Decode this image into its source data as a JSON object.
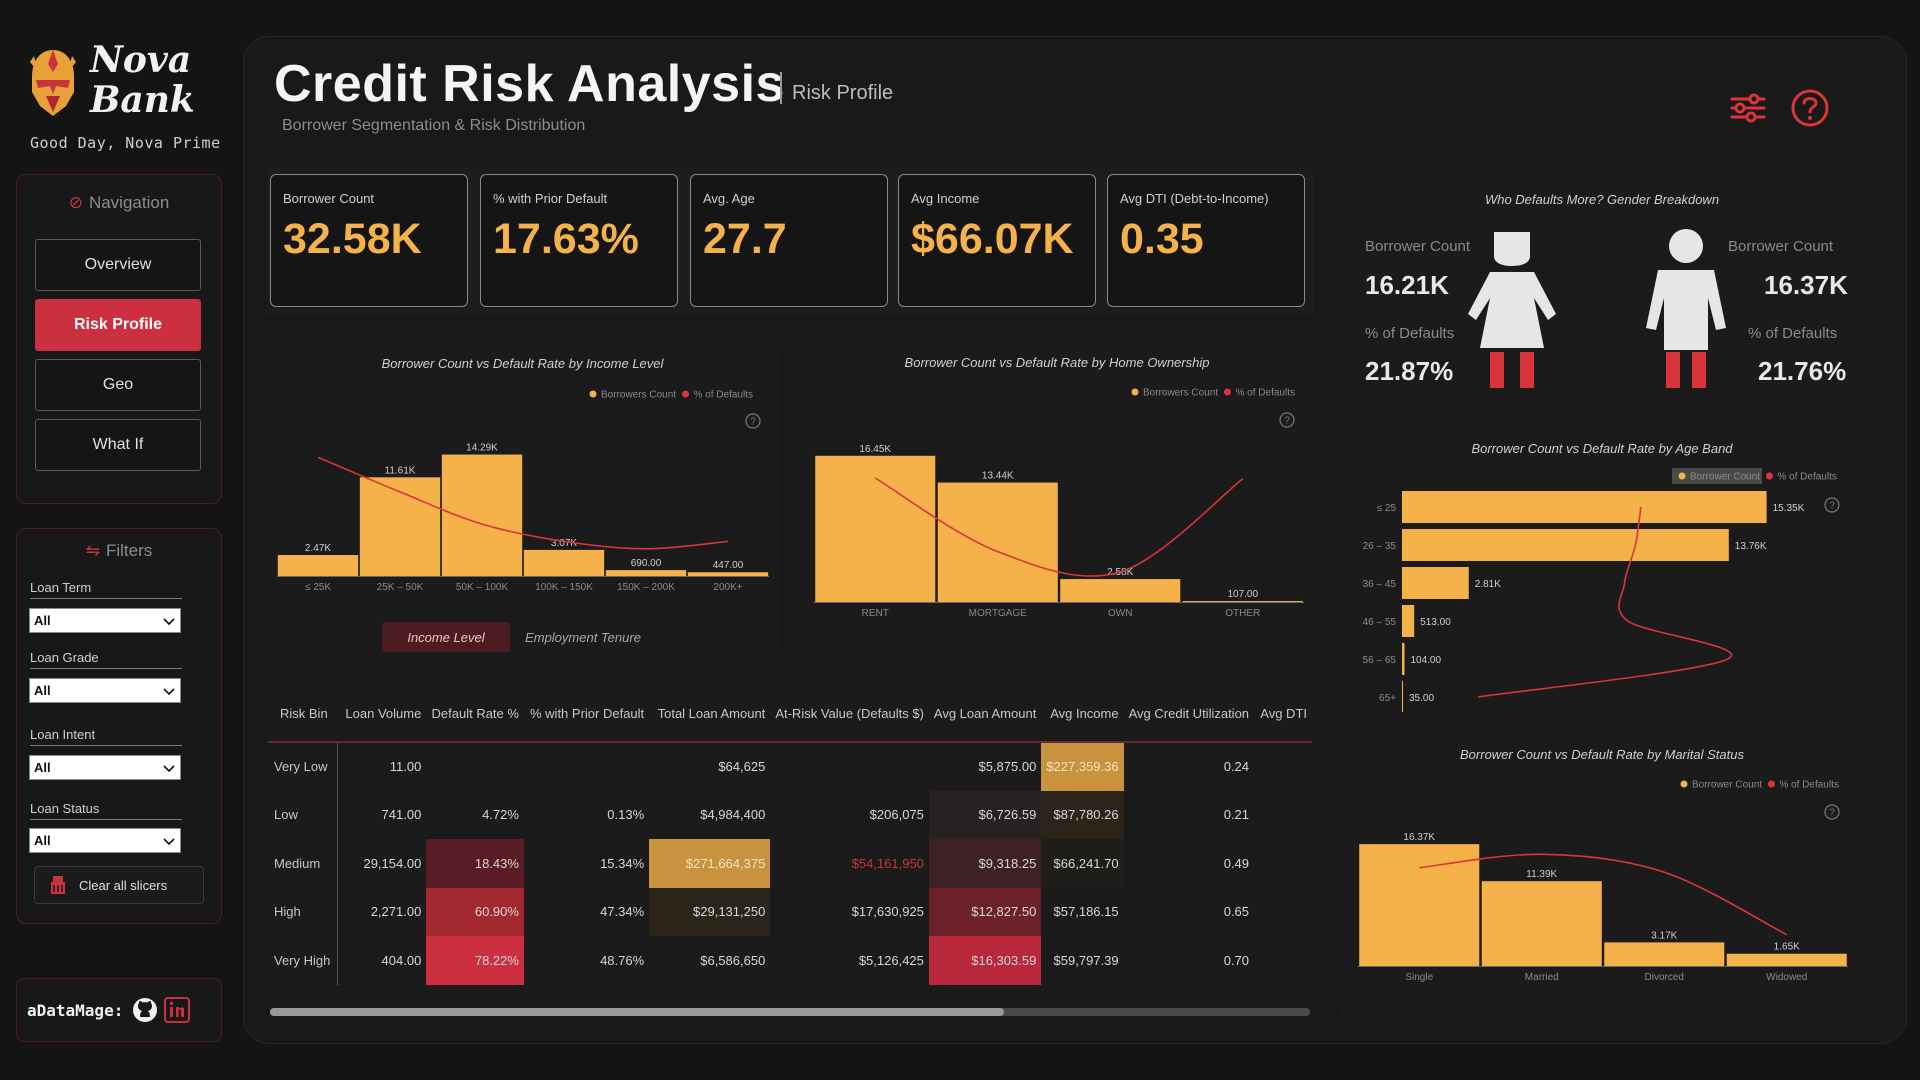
{
  "brand": {
    "name_line1": "Nova",
    "name_line2": "Bank",
    "greeting": "Good Day, Nova Prime"
  },
  "navigation": {
    "title": "Navigation",
    "items": [
      {
        "label": "Overview",
        "active": false
      },
      {
        "label": "Risk Profile",
        "active": true
      },
      {
        "label": "Geo",
        "active": false
      },
      {
        "label": "What If",
        "active": false
      }
    ]
  },
  "filters": {
    "title": "Filters",
    "items": [
      {
        "label": "Loan Term",
        "value": "All"
      },
      {
        "label": "Loan Grade",
        "value": "All"
      },
      {
        "label": "Loan Intent",
        "value": "All"
      },
      {
        "label": "Loan Status",
        "value": "All"
      }
    ],
    "clear_label": "Clear all slicers"
  },
  "footer": {
    "handle": "aDataMage:"
  },
  "header": {
    "title": "Credit Risk Analysis",
    "page": "Risk Profile",
    "subtitle": "Borrower Segmentation & Risk Distribution"
  },
  "kpis": [
    {
      "label": "Borrower Count",
      "value": "32.58K"
    },
    {
      "label": "% with Prior Default",
      "value": "17.63%"
    },
    {
      "label": "Avg. Age",
      "value": "27.7"
    },
    {
      "label": "Avg Income",
      "value": "$66.07K"
    },
    {
      "label": "Avg DTI (Debt-to-Income)",
      "value": "0.35"
    }
  ],
  "colors": {
    "bar": "#f5b14a",
    "line": "#d9353a",
    "accent": "#cc3040"
  },
  "legend": {
    "bar": "Borrowers Count",
    "line": "% of Defaults",
    "bar_alt": "Borrower Count"
  },
  "income_tabs": {
    "active": "Income Level",
    "inactive": "Employment Tenure"
  },
  "gender": {
    "title": "Who Defaults More? Gender Breakdown",
    "count_label": "Borrower Count",
    "pct_label": "% of Defaults",
    "female": {
      "count": "16.21K",
      "pct": "21.87%"
    },
    "male": {
      "count": "16.37K",
      "pct": "21.76%"
    }
  },
  "chart_data": [
    {
      "id": "income",
      "type": "bar",
      "title": "Borrower Count vs Default Rate by Income Level",
      "categories": [
        "≤ 25K",
        "25K – 50K",
        "50K – 100K",
        "100K – 150K",
        "150K – 200K",
        "200K+"
      ],
      "series": [
        {
          "name": "Borrowers Count",
          "values": [
            2470,
            11610,
            14290,
            3070,
            690,
            447
          ]
        },
        {
          "name": "% of Defaults",
          "values": [
            48,
            34,
            21,
            14,
            11,
            14
          ]
        }
      ],
      "labels": [
        "2.47K",
        "11.61K",
        "14.29K",
        "3.07K",
        "690.00",
        "447.00"
      ],
      "ylim": [
        0,
        16000
      ],
      "y2lim": [
        0,
        55
      ]
    },
    {
      "id": "home",
      "type": "bar",
      "title": "Borrower Count vs Default Rate by Home Ownership",
      "categories": [
        "RENT",
        "MORTGAGE",
        "OWN",
        "OTHER"
      ],
      "series": [
        {
          "name": "Borrowers Count",
          "values": [
            16450,
            13440,
            2580,
            107
          ]
        },
        {
          "name": "% of Defaults",
          "values": [
            31,
            12.6,
            7.5,
            30.8
          ]
        }
      ],
      "labels": [
        "16.45K",
        "13.44K",
        "2.58K",
        "107.00"
      ],
      "ylim": [
        0,
        18000
      ],
      "y2lim": [
        0,
        40
      ]
    },
    {
      "id": "age",
      "type": "bar",
      "orientation": "horizontal",
      "title": "Borrower Count vs Default Rate by Age Band",
      "categories": [
        "≤ 25",
        "26 – 35",
        "36 – 45",
        "46 – 55",
        "56 – 65",
        "65+"
      ],
      "series": [
        {
          "name": "Borrower Count",
          "values": [
            15350,
            13760,
            2810,
            513,
            104,
            35
          ]
        },
        {
          "name": "% of Defaults",
          "values": [
            22,
            21.5,
            20.5,
            20.8,
            30,
            7
          ]
        }
      ],
      "labels": [
        "15.35K",
        "13.76K",
        "2.81K",
        "513.00",
        "104.00",
        "35.00"
      ],
      "xlim": [
        0,
        16000
      ],
      "x2lim": [
        0,
        35
      ]
    },
    {
      "id": "marital",
      "type": "bar",
      "title": "Borrower Count vs Default Rate by Marital Status",
      "categories": [
        "Single",
        "Married",
        "Divorced",
        "Widowed"
      ],
      "series": [
        {
          "name": "Borrower Count",
          "values": [
            16370,
            11390,
            3170,
            1650
          ]
        },
        {
          "name": "% of Defaults",
          "values": [
            22,
            25,
            21,
            7
          ]
        }
      ],
      "labels": [
        "16.37K",
        "11.39K",
        "3.17K",
        "1.65K"
      ],
      "ylim": [
        0,
        18000
      ],
      "y2lim": [
        0,
        30
      ]
    }
  ],
  "risk_table": {
    "columns": [
      "Risk Bin",
      "Loan Volume",
      "Default Rate %",
      "% with Prior Default",
      "Total Loan Amount",
      "At-Risk Value (Defaults $)",
      "Avg Loan Amount",
      "Avg Income",
      "Avg Credit Utilization",
      "Avg DTI"
    ],
    "rows": [
      [
        "Very Low",
        "11.00",
        "",
        "",
        "$64,625",
        "",
        "$5,875.00",
        "$227,359.36",
        "0.24",
        ""
      ],
      [
        "Low",
        "741.00",
        "4.72%",
        "0.13%",
        "$4,984,400",
        "$206,075",
        "$6,726.59",
        "$87,780.26",
        "0.21",
        ""
      ],
      [
        "Medium",
        "29,154.00",
        "18.43%",
        "15.34%",
        "$271,664,375",
        "$54,161,950",
        "$9,318.25",
        "$66,241.70",
        "0.49",
        ""
      ],
      [
        "High",
        "2,271.00",
        "60.90%",
        "47.34%",
        "$29,131,250",
        "$17,630,925",
        "$12,827.50",
        "$57,186.15",
        "0.65",
        ""
      ],
      [
        "Very High",
        "404.00",
        "78.22%",
        "48.76%",
        "$6,586,650",
        "$5,126,425",
        "$16,303.59",
        "$59,797.39",
        "0.70",
        ""
      ]
    ],
    "cell_colors": [
      [
        "",
        "",
        "",
        "",
        "",
        "",
        "",
        "#c8923f",
        "",
        ""
      ],
      [
        "",
        "",
        "",
        "",
        "",
        "",
        "#272121",
        "#2c2418",
        "",
        ""
      ],
      [
        "",
        "",
        "#5a1c24",
        "",
        "#c8923f",
        "",
        "#3d2125",
        "#1f1d1a",
        "",
        ""
      ],
      [
        "",
        "",
        "#a3282f",
        "",
        "#2b2418",
        "",
        "#6d222a",
        "",
        "",
        ""
      ],
      [
        "",
        "",
        "#cc3040",
        "",
        "",
        "",
        "#b8283a",
        "",
        "",
        ""
      ]
    ],
    "text_colors": [
      [
        "",
        "",
        "",
        "",
        "",
        "",
        "",
        "",
        "",
        ""
      ],
      [
        "",
        "",
        "",
        "",
        "",
        "",
        "",
        "",
        "",
        ""
      ],
      [
        "",
        "",
        "",
        "",
        "",
        "#c8343c",
        "",
        "",
        "",
        ""
      ],
      [
        "",
        "",
        "",
        "",
        "",
        "",
        "",
        "",
        "",
        ""
      ],
      [
        "",
        "",
        "",
        "",
        "",
        "",
        "",
        "",
        "",
        ""
      ]
    ]
  }
}
